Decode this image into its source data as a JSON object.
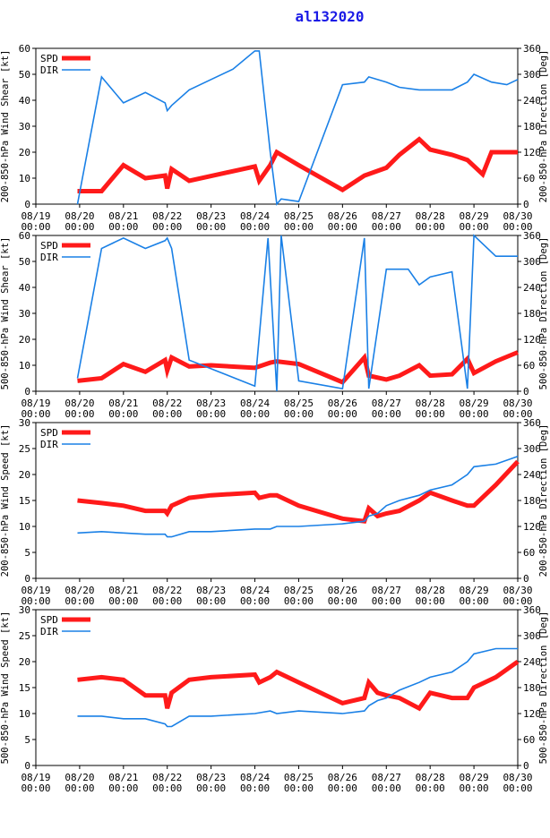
{
  "title": "al132020",
  "colors": {
    "spd": "#ff1a1a",
    "dir": "#1a80e6",
    "title": "#1a1ae6",
    "axis": "#000000"
  },
  "chart_data": [
    {
      "type": "line",
      "ylabel": "200-850-hPa Wind Shear [kt]",
      "y2label": "200-850-hPa Direction [Deg]",
      "ylim": [
        0,
        60
      ],
      "yticks": [
        0,
        10,
        20,
        30,
        40,
        50,
        60
      ],
      "y2lim": [
        0,
        360
      ],
      "y2ticks": [
        0,
        60,
        120,
        180,
        240,
        300,
        360
      ],
      "xlim": [
        0,
        11
      ],
      "xticks": [
        "08/19\n00:00",
        "08/20\n00:00",
        "08/21\n00:00",
        "08/22\n00:00",
        "08/23\n00:00",
        "08/24\n00:00",
        "08/25\n00:00",
        "08/26\n00:00",
        "08/27\n00:00",
        "08/28\n00:00",
        "08/29\n00:00",
        "08/30\n00:00"
      ],
      "legend": [
        "SPD",
        "DIR"
      ],
      "series": [
        {
          "name": "SPD",
          "axis": "left",
          "x": [
            0.95,
            1.5,
            2.0,
            2.5,
            2.95,
            3.0,
            3.1,
            3.5,
            5.0,
            5.1,
            5.35,
            5.5,
            6.0,
            7.0,
            7.5,
            8.0,
            8.3,
            8.75,
            9.0,
            9.5,
            9.85,
            10.2,
            10.4,
            11.0
          ],
          "values": [
            5,
            5,
            15,
            10,
            11,
            6,
            13.5,
            9,
            14.5,
            9,
            15,
            20,
            15,
            5.5,
            11,
            14,
            19,
            25,
            21,
            19,
            17,
            11.5,
            20,
            20
          ]
        },
        {
          "name": "DIR",
          "axis": "right",
          "x": [
            0.95,
            1.5,
            2.0,
            2.5,
            2.95,
            3.0,
            3.1,
            3.5,
            4.0,
            4.5,
            5.0,
            5.1,
            5.35,
            5.5,
            5.6,
            6.0,
            7.0,
            7.5,
            7.6,
            8.0,
            8.3,
            8.75,
            9.0,
            9.5,
            9.85,
            10.0,
            10.4,
            10.75,
            11.0
          ],
          "values": [
            0,
            294,
            234,
            258,
            234,
            216,
            228,
            264,
            288,
            312,
            354,
            354,
            120,
            0,
            12,
            6,
            276,
            282,
            294,
            282,
            270,
            264,
            264,
            264,
            282,
            300,
            282,
            276,
            288
          ]
        }
      ]
    },
    {
      "type": "line",
      "ylabel": "500-850-hPa Wind Shear [kt]",
      "y2label": "500-850-hPa Direction [Deg]",
      "ylim": [
        0,
        60
      ],
      "yticks": [
        0,
        10,
        20,
        30,
        40,
        50,
        60
      ],
      "y2lim": [
        0,
        360
      ],
      "y2ticks": [
        0,
        60,
        120,
        180,
        240,
        300,
        360
      ],
      "xlim": [
        0,
        11
      ],
      "xticks": [
        "08/19\n00:00",
        "08/20\n00:00",
        "08/21\n00:00",
        "08/22\n00:00",
        "08/23\n00:00",
        "08/24\n00:00",
        "08/25\n00:00",
        "08/26\n00:00",
        "08/27\n00:00",
        "08/28\n00:00",
        "08/29\n00:00",
        "08/30\n00:00"
      ],
      "legend": [
        "SPD",
        "DIR"
      ],
      "series": [
        {
          "name": "SPD",
          "axis": "left",
          "x": [
            0.95,
            1.5,
            2.0,
            2.5,
            2.95,
            3.0,
            3.1,
            3.5,
            4.0,
            5.0,
            5.35,
            5.5,
            6.0,
            7.0,
            7.5,
            7.6,
            8.0,
            8.3,
            8.75,
            9.0,
            9.5,
            9.85,
            10.0,
            10.5,
            11.0
          ],
          "values": [
            4,
            5,
            10.5,
            7.5,
            12,
            8,
            13,
            9.5,
            10,
            9,
            11,
            11.5,
            10.5,
            3.5,
            13,
            6,
            4.5,
            6,
            10,
            6,
            6.5,
            12.5,
            7,
            11.5,
            15
          ]
        },
        {
          "name": "DIR",
          "axis": "right",
          "x": [
            0.95,
            1.5,
            2.0,
            2.5,
            2.95,
            3.0,
            3.1,
            3.5,
            5.0,
            5.3,
            5.5,
            5.6,
            6.0,
            7.0,
            7.5,
            7.6,
            8.0,
            8.3,
            8.5,
            8.75,
            9.0,
            9.5,
            9.85,
            10.0,
            10.5,
            11.0
          ],
          "values": [
            30,
            330,
            354,
            330,
            348,
            354,
            330,
            72,
            12,
            354,
            0,
            360,
            24,
            6,
            354,
            6,
            282,
            282,
            282,
            246,
            264,
            276,
            6,
            360,
            312,
            312
          ]
        }
      ]
    },
    {
      "type": "line",
      "ylabel": "200-850-hPa Wind Speed [kt]",
      "y2label": "200-850-hPa Direction [Deg]",
      "ylim": [
        0,
        30
      ],
      "yticks": [
        0,
        5,
        10,
        15,
        20,
        25,
        30
      ],
      "y2lim": [
        0,
        360
      ],
      "y2ticks": [
        0,
        60,
        120,
        180,
        240,
        300,
        360
      ],
      "xlim": [
        0,
        11
      ],
      "xticks": [
        "08/19\n00:00",
        "08/20\n00:00",
        "08/21\n00:00",
        "08/22\n00:00",
        "08/23\n00:00",
        "08/24\n00:00",
        "08/25\n00:00",
        "08/26\n00:00",
        "08/27\n00:00",
        "08/28\n00:00",
        "08/29\n00:00",
        "08/30\n00:00"
      ],
      "legend": [
        "SPD",
        "DIR"
      ],
      "series": [
        {
          "name": "SPD",
          "axis": "left",
          "x": [
            0.95,
            1.5,
            2.0,
            2.5,
            2.95,
            3.0,
            3.1,
            3.5,
            4.0,
            5.0,
            5.1,
            5.35,
            5.5,
            6.0,
            7.0,
            7.5,
            7.6,
            7.8,
            8.0,
            8.3,
            8.75,
            9.0,
            9.5,
            9.85,
            10.0,
            10.5,
            11.0
          ],
          "values": [
            15,
            14.5,
            14,
            13,
            13,
            12.5,
            14,
            15.5,
            16,
            16.5,
            15.5,
            16,
            16,
            14,
            11.5,
            11,
            13.5,
            12,
            12.5,
            13,
            15,
            16.5,
            15,
            14,
            14,
            18,
            22.5
          ]
        },
        {
          "name": "DIR",
          "axis": "right",
          "x": [
            0.95,
            1.5,
            2.0,
            2.5,
            2.95,
            3.0,
            3.1,
            3.5,
            4.0,
            5.0,
            5.35,
            5.5,
            6.0,
            7.0,
            7.5,
            7.6,
            7.8,
            8.0,
            8.3,
            8.75,
            9.0,
            9.5,
            9.85,
            10.0,
            10.5,
            11.0
          ],
          "values": [
            105,
            108,
            105,
            102,
            102,
            96,
            96,
            108,
            108,
            114,
            114,
            120,
            120,
            126,
            132,
            144,
            150,
            168,
            180,
            192,
            204,
            216,
            240,
            258,
            264,
            282
          ]
        }
      ]
    },
    {
      "type": "line",
      "ylabel": "500-850-hPa Wind Speed [kt]",
      "y2label": "500-850-hPa Direction [Deg]",
      "ylim": [
        0,
        30
      ],
      "yticks": [
        0,
        5,
        10,
        15,
        20,
        25,
        30
      ],
      "y2lim": [
        0,
        360
      ],
      "y2ticks": [
        0,
        60,
        120,
        180,
        240,
        300,
        360
      ],
      "xlim": [
        0,
        11
      ],
      "xticks": [
        "08/19\n00:00",
        "08/20\n00:00",
        "08/21\n00:00",
        "08/22\n00:00",
        "08/23\n00:00",
        "08/24\n00:00",
        "08/25\n00:00",
        "08/26\n00:00",
        "08/27\n00:00",
        "08/28\n00:00",
        "08/29\n00:00",
        "08/30\n00:00"
      ],
      "legend": [
        "SPD",
        "DIR"
      ],
      "series": [
        {
          "name": "SPD",
          "axis": "left",
          "x": [
            0.95,
            1.5,
            2.0,
            2.5,
            2.95,
            3.0,
            3.1,
            3.5,
            4.0,
            5.0,
            5.1,
            5.35,
            5.5,
            6.0,
            7.0,
            7.5,
            7.6,
            7.8,
            8.0,
            8.3,
            8.75,
            9.0,
            9.5,
            9.85,
            10.0,
            10.5,
            11.0
          ],
          "values": [
            16.5,
            17,
            16.5,
            13.5,
            13.5,
            11,
            14,
            16.5,
            17,
            17.5,
            16,
            17,
            18,
            16,
            12,
            13,
            16,
            14,
            13.5,
            13,
            11,
            14,
            13,
            13,
            15,
            17,
            20
          ]
        },
        {
          "name": "DIR",
          "axis": "right",
          "x": [
            0.95,
            1.5,
            2.0,
            2.5,
            2.95,
            3.0,
            3.1,
            3.5,
            4.0,
            5.0,
            5.35,
            5.5,
            6.0,
            7.0,
            7.5,
            7.6,
            7.8,
            8.0,
            8.3,
            8.75,
            9.0,
            9.5,
            9.85,
            10.0,
            10.5,
            11.0
          ],
          "values": [
            114,
            114,
            108,
            108,
            96,
            90,
            90,
            114,
            114,
            120,
            126,
            120,
            126,
            120,
            126,
            138,
            150,
            156,
            174,
            192,
            204,
            216,
            240,
            258,
            270,
            270
          ]
        }
      ]
    }
  ]
}
